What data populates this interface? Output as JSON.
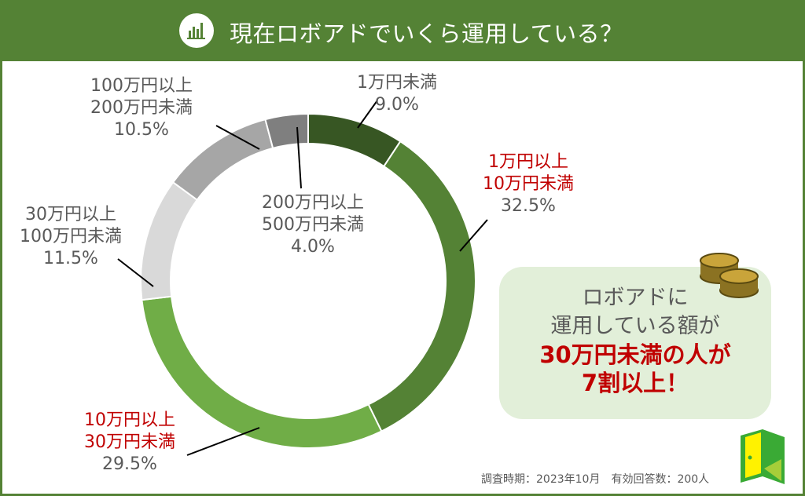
{
  "header": {
    "title": "現在ロボアドでいくら運用している？",
    "icon": "bar-chart-icon"
  },
  "chart_data": {
    "type": "pie",
    "donut": true,
    "title": "現在ロボアドでいくら運用している？",
    "slices": [
      {
        "label": [
          "1万円未満"
        ],
        "value": 9.0,
        "display": "9.0%",
        "color": "#375623",
        "highlight": false
      },
      {
        "label": [
          "1万円以上",
          "10万円未満"
        ],
        "value": 32.5,
        "display": "32.5%",
        "color": "#548235",
        "highlight": true
      },
      {
        "label": [
          "10万円以上",
          "30万円未満"
        ],
        "value": 29.5,
        "display": "29.5%",
        "color": "#70ad47",
        "highlight": true
      },
      {
        "label": [
          "30万円以上",
          "100万円未満"
        ],
        "value": 11.5,
        "display": "11.5%",
        "color": "#d9d9d9",
        "highlight": false
      },
      {
        "label": [
          "100万円以上",
          "200万円未満"
        ],
        "value": 10.5,
        "display": "10.5%",
        "color": "#a6a6a6",
        "highlight": false
      },
      {
        "label": [
          "200万円以上",
          "500万円未満"
        ],
        "value": 4.0,
        "display": "4.0%",
        "color": "#7f7f7f",
        "highlight": false
      }
    ],
    "start": "top",
    "direction": "clockwise"
  },
  "callout": {
    "line1": "ロボアドに",
    "line2": "運用している額が",
    "line3": "30万円未満の人が",
    "line4": "7割以上！",
    "icon": "coins-icon"
  },
  "footer": {
    "text": "調査時期：2023年10月　有効回答数：200人"
  },
  "logo": {
    "icon": "door-logo-icon"
  }
}
